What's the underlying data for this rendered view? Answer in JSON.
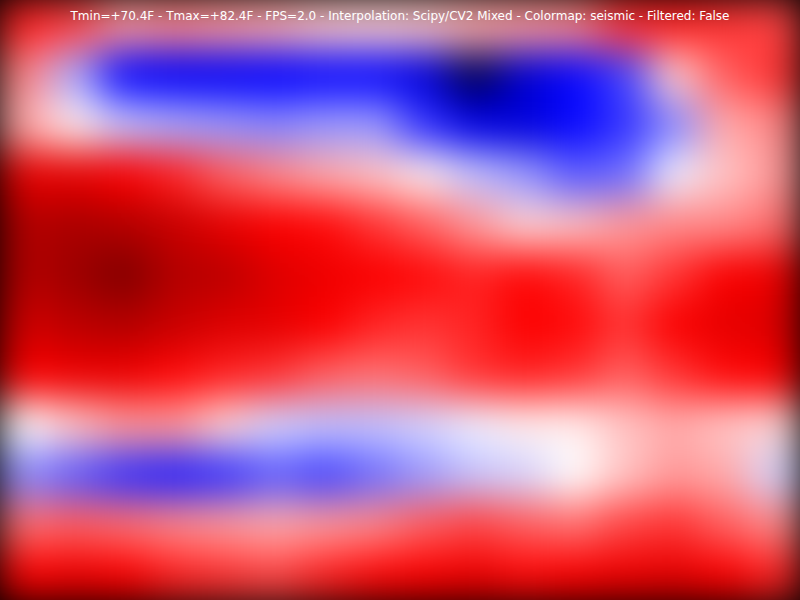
{
  "chart_data": {
    "type": "heatmap",
    "title": "Tmin=+70.4F - Tmax=+82.4F - FPS=2.0 - Interpolation: Scipy/CV2 Mixed - Colormap: seismic - Filtered: False",
    "color_range": [
      70.4,
      82.4
    ],
    "tick_labels": false,
    "cells": [
      [
        79.0,
        78.6,
        77.6,
        77.8,
        77.6,
        77.4,
        77.1,
        77.0,
        77.1,
        77.4,
        77.6,
        77.8,
        78.8,
        79.0,
        78.8,
        78.6
      ],
      [
        77.8,
        75.4,
        73.5,
        73.3,
        73.3,
        73.4,
        73.5,
        73.5,
        72.8,
        70.4,
        72.6,
        73.5,
        74.2,
        77.0,
        78.3,
        78.8
      ],
      [
        77.4,
        76.6,
        75.7,
        75.4,
        75.2,
        75.0,
        75.2,
        75.2,
        74.0,
        73.0,
        72.8,
        73.5,
        74.0,
        75.0,
        77.4,
        77.8
      ],
      [
        80.0,
        80.0,
        79.5,
        79.0,
        78.3,
        77.8,
        77.4,
        77.1,
        76.6,
        75.7,
        75.2,
        74.5,
        74.7,
        76.2,
        77.1,
        77.6
      ],
      [
        81.2,
        81.4,
        81.2,
        80.7,
        80.0,
        79.5,
        79.3,
        78.8,
        78.3,
        77.6,
        76.9,
        77.1,
        77.6,
        77.8,
        77.8,
        78.1
      ],
      [
        81.2,
        81.7,
        82.4,
        81.2,
        81.0,
        80.2,
        79.8,
        79.5,
        79.3,
        79.0,
        79.3,
        79.0,
        78.3,
        78.8,
        79.5,
        79.8
      ],
      [
        80.5,
        81.0,
        81.2,
        80.7,
        80.2,
        80.0,
        79.5,
        79.0,
        78.8,
        79.0,
        79.5,
        79.3,
        78.8,
        79.5,
        80.0,
        80.2
      ],
      [
        79.5,
        79.8,
        79.8,
        79.3,
        79.0,
        78.8,
        78.3,
        78.1,
        78.3,
        78.8,
        79.0,
        78.8,
        78.3,
        78.8,
        79.3,
        79.5
      ],
      [
        76.4,
        77.1,
        77.6,
        77.6,
        76.9,
        75.9,
        75.7,
        75.7,
        75.9,
        76.2,
        76.6,
        76.6,
        77.1,
        77.4,
        77.1,
        76.9
      ],
      [
        75.0,
        74.5,
        74.0,
        73.8,
        74.0,
        74.5,
        74.2,
        74.7,
        75.2,
        75.7,
        75.9,
        76.4,
        77.1,
        77.6,
        77.4,
        75.9
      ],
      [
        78.1,
        78.3,
        78.1,
        77.8,
        77.6,
        77.4,
        77.6,
        77.8,
        78.3,
        78.6,
        78.3,
        78.1,
        78.6,
        78.8,
        78.3,
        77.8
      ],
      [
        79.5,
        79.8,
        79.5,
        79.0,
        78.8,
        78.6,
        79.0,
        79.3,
        79.5,
        79.8,
        79.3,
        79.5,
        79.8,
        80.0,
        79.5,
        79.0
      ]
    ]
  }
}
